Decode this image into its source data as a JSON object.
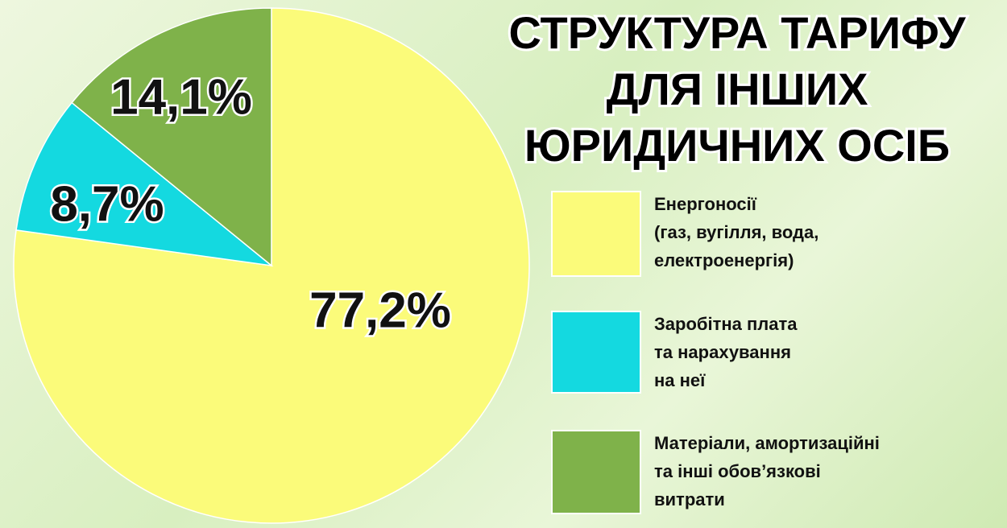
{
  "chart_data": {
    "type": "pie",
    "title": [
      "СТРУКТУРА ТАРИФУ",
      "ДЛЯ ІНШИХ",
      "ЮРИДИЧНИХ ОСІБ"
    ],
    "categories": [
      [
        "Енергоносії",
        "(газ, вугілля, вода,",
        "електроенергія)"
      ],
      [
        "Заробітна плата",
        "та нарахування",
        "на неї"
      ],
      [
        "Матеріали, амортизаційні",
        "та інші обов’язкові",
        "витрати"
      ]
    ],
    "values": [
      77.2,
      8.7,
      14.1
    ],
    "value_labels": [
      "77,2%",
      "8,7%",
      "14,1%"
    ],
    "colors": [
      "#fbfb7a",
      "#14d9e0",
      "#7fb24a"
    ]
  }
}
